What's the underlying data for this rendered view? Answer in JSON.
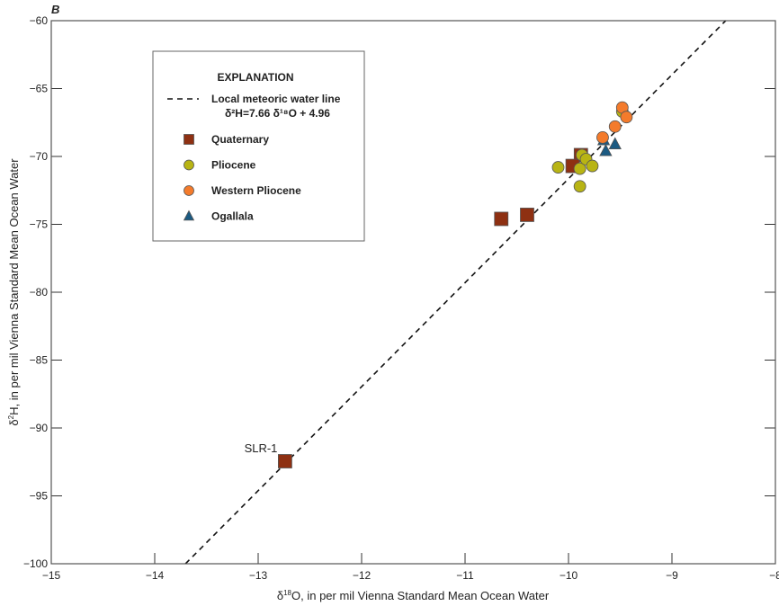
{
  "panel_label": "B",
  "chart_data": {
    "type": "scatter",
    "title": "",
    "xlabel": "δ18O, in per mil Vienna Standard Mean Ocean Water",
    "xlabel_parts": {
      "pre": "δ",
      "sup": "18",
      "post": "O, in per mil Vienna Standard Mean Ocean Water"
    },
    "ylabel": "δ2H, in per mil Vienna Standard Mean Ocean Water",
    "ylabel_parts": {
      "pre": "δ",
      "sup": "2",
      "post": "H, in per mil Vienna Standard Mean Ocean Water"
    },
    "xlim": [
      -15,
      -8
    ],
    "ylim": [
      -100,
      -60
    ],
    "xticks": [
      -15,
      -14,
      -13,
      -12,
      -11,
      -10,
      -9,
      -8
    ],
    "yticks": [
      -100,
      -95,
      -90,
      -85,
      -80,
      -75,
      -70,
      -65,
      -60
    ],
    "xtick_labels": [
      "−15",
      "−14",
      "−13",
      "−12",
      "−11",
      "−10",
      "−9",
      "−8"
    ],
    "ytick_labels": [
      "−100",
      "−95",
      "−90",
      "−85",
      "−80",
      "−75",
      "−70",
      "−65",
      "−60"
    ],
    "grid": false,
    "legend": {
      "title": "EXPLANATION",
      "placement": "top-left",
      "line_label": "Local meteoric water line",
      "equation": "δ²H=7.66 δ¹⁸O + 4.96"
    },
    "lmwl": {
      "slope": 7.66,
      "intercept": 4.96
    },
    "series": [
      {
        "name": "Quaternary",
        "marker": "square",
        "color": "#8E3012",
        "points": [
          [
            -9.88,
            -69.9
          ],
          [
            -9.96,
            -70.7
          ],
          [
            -10.65,
            -74.6
          ],
          [
            -10.4,
            -74.3
          ],
          [
            -12.74,
            -92.45
          ]
        ]
      },
      {
        "name": "Pliocene",
        "marker": "circle",
        "color": "#B8B414",
        "points": [
          [
            -10.1,
            -70.8
          ],
          [
            -9.89,
            -70.9
          ],
          [
            -9.87,
            -69.9
          ],
          [
            -9.83,
            -70.2
          ],
          [
            -9.77,
            -70.7
          ],
          [
            -9.89,
            -72.2
          ],
          [
            -9.48,
            -66.7
          ]
        ]
      },
      {
        "name": "Western Pliocene",
        "marker": "circle",
        "color": "#F47B2C",
        "points": [
          [
            -9.48,
            -66.4
          ],
          [
            -9.44,
            -67.1
          ],
          [
            -9.55,
            -67.8
          ],
          [
            -9.67,
            -68.6
          ]
        ]
      },
      {
        "name": "Ogallala",
        "marker": "triangle",
        "color": "#1B5A82",
        "points": [
          [
            -9.66,
            -68.8
          ],
          [
            -9.64,
            -69.6
          ],
          [
            -9.55,
            -69.1
          ]
        ]
      }
    ],
    "annotations": [
      {
        "text": "SLR-1",
        "x": -12.74,
        "y": -92.45
      }
    ]
  }
}
